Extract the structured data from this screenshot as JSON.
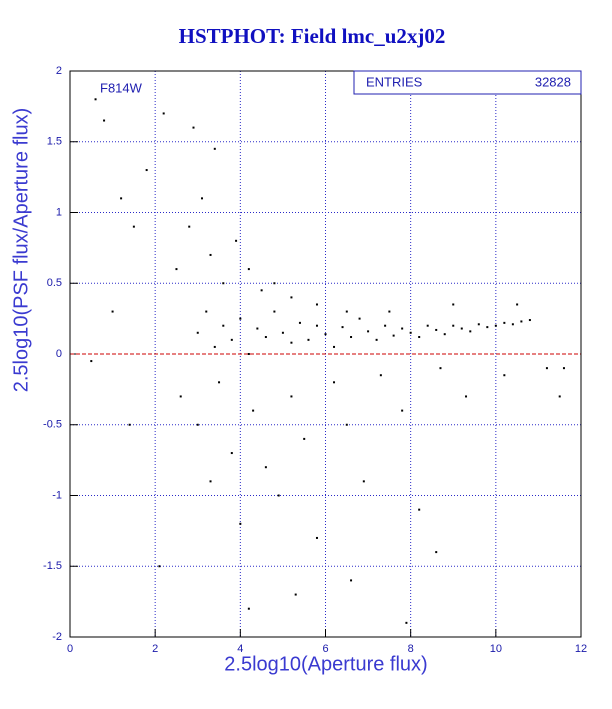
{
  "chart_data": {
    "type": "scatter",
    "title": "HSTPHOT: Field lmc_u2xj02",
    "x_label": "2.5log10(Aperture flux)",
    "y_label": "2.5log10(PSF flux/Aperture flux)",
    "annotation": "F814W",
    "stats": {
      "label": "ENTRIES",
      "value": 32828
    },
    "xlim": [
      0,
      12
    ],
    "xticks": [
      0,
      2,
      4,
      6,
      8,
      10,
      12
    ],
    "ylim": [
      -2,
      2
    ],
    "yticks": [
      -2,
      -1.5,
      -1,
      -0.5,
      0,
      0.5,
      1,
      1.5,
      2
    ],
    "grid": true,
    "reference_line": {
      "y": 0,
      "color": "#cc0000"
    },
    "series": [
      {
        "color": "#000000",
        "x": [
          3.0,
          3.2,
          3.4,
          3.6,
          3.8,
          4.0,
          4.2,
          4.4,
          4.6,
          4.8,
          5.0,
          5.2,
          5.4,
          5.6,
          5.8,
          6.0,
          6.2,
          6.4,
          6.6,
          6.8,
          7.0,
          7.2,
          7.4,
          7.6,
          7.8,
          8.0,
          8.2,
          8.4,
          8.6,
          8.8,
          9.0,
          9.2,
          9.4,
          9.6,
          9.8,
          10.0,
          10.2,
          10.4,
          10.6,
          10.8,
          2.5,
          2.8,
          3.1,
          3.3,
          3.6,
          3.9,
          4.2,
          4.5,
          4.8,
          5.2,
          5.8,
          6.5,
          7.5,
          9.0,
          10.5,
          2.6,
          3.0,
          3.3,
          3.5,
          3.8,
          4.0,
          4.3,
          4.6,
          4.9,
          5.2,
          5.5,
          5.8,
          6.2,
          6.5,
          6.9,
          7.3,
          7.8,
          8.2,
          8.7,
          9.3,
          10.2,
          11.2,
          0.6,
          0.8,
          1.2,
          1.5,
          1.8,
          2.2,
          2.9,
          3.4,
          0.5,
          1.0,
          1.4,
          2.1,
          4.2,
          5.3,
          6.6,
          7.9,
          8.6,
          11.5,
          11.6
        ],
        "y": [
          0.15,
          0.3,
          0.05,
          0.2,
          0.1,
          0.25,
          0.0,
          0.18,
          0.12,
          0.3,
          0.15,
          0.08,
          0.22,
          0.1,
          0.2,
          0.14,
          0.05,
          0.19,
          0.12,
          0.25,
          0.16,
          0.1,
          0.2,
          0.13,
          0.18,
          0.15,
          0.12,
          0.2,
          0.17,
          0.14,
          0.2,
          0.18,
          0.16,
          0.21,
          0.19,
          0.2,
          0.22,
          0.21,
          0.23,
          0.24,
          0.6,
          0.9,
          1.1,
          0.7,
          0.5,
          0.8,
          0.6,
          0.45,
          0.5,
          0.4,
          0.35,
          0.3,
          0.3,
          0.35,
          0.35,
          -0.3,
          -0.5,
          -0.9,
          -0.2,
          -0.7,
          -1.2,
          -0.4,
          -0.8,
          -1.0,
          -0.3,
          -0.6,
          -1.3,
          -0.2,
          -0.5,
          -0.9,
          -0.15,
          -0.4,
          -1.1,
          -0.1,
          -0.3,
          -0.15,
          -0.1,
          1.8,
          1.65,
          1.1,
          0.9,
          1.3,
          1.7,
          1.6,
          1.45,
          -0.05,
          0.3,
          -0.5,
          -1.5,
          -1.8,
          -1.7,
          -1.6,
          -1.9,
          -1.4,
          -0.3,
          -0.1
        ]
      }
    ]
  }
}
